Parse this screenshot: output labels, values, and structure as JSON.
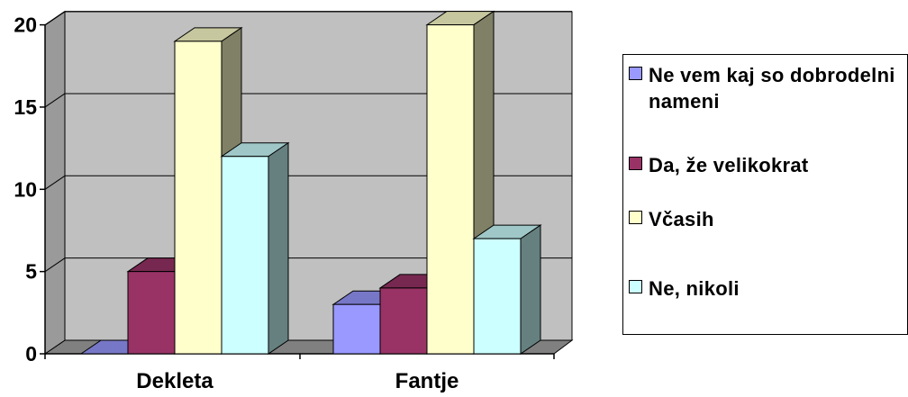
{
  "chart_data": {
    "type": "bar",
    "categories": [
      "Dekleta",
      "Fantje"
    ],
    "series": [
      {
        "name": "Ne vem kaj so dobrodelni nameni",
        "values": [
          0,
          3
        ],
        "color": "#9999FF"
      },
      {
        "name": "Da, že velikokrat",
        "values": [
          5,
          4
        ],
        "color": "#993366"
      },
      {
        "name": "Včasih",
        "values": [
          19,
          20
        ],
        "color": "#FFFFCC"
      },
      {
        "name": "Ne, nikoli",
        "values": [
          12,
          7
        ],
        "color": "#CCFFFF"
      }
    ],
    "yticks": [
      "0",
      "5",
      "10",
      "15",
      "20"
    ],
    "ylim": [
      0,
      20
    ],
    "grid": true,
    "three_d": true,
    "legend_position": "right",
    "plot_background": "#C0C0C0"
  }
}
